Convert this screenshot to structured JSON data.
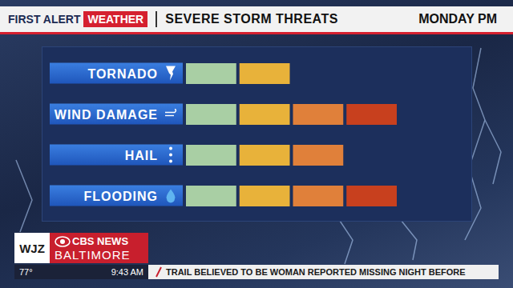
{
  "chart_data": {
    "type": "bar",
    "orientation": "horizontal",
    "stacked": true,
    "title": "SEVERE STORM THREATS",
    "subtitle": "MONDAY PM",
    "annotations": {
      "brand": "FIRST ALERT WEATHER",
      "station": "WJZ",
      "network": "CBS NEWS",
      "city": "BALTIMORE",
      "temperature": "77°",
      "time": "9:43 AM",
      "ticker": "TRAIL BELIEVED TO BE WOMAN REPORTED MISSING NIGHT BEFORE"
    },
    "categories": [
      "TORNADO",
      "WIND DAMAGE",
      "HAIL",
      "FLOODING"
    ],
    "series": [
      {
        "color": "#a9cfa4",
        "values": [
          1,
          1,
          1,
          1
        ]
      },
      {
        "color": "#e8b23a",
        "values": [
          1,
          1,
          1,
          1
        ]
      },
      {
        "color": "#e0803a",
        "values": [
          0,
          1,
          1,
          1
        ]
      },
      {
        "color": "#c8401e",
        "values": [
          0,
          1,
          0,
          1
        ]
      }
    ],
    "xlim": [
      0,
      4
    ],
    "tick_labels": false,
    "grid": false
  }
}
